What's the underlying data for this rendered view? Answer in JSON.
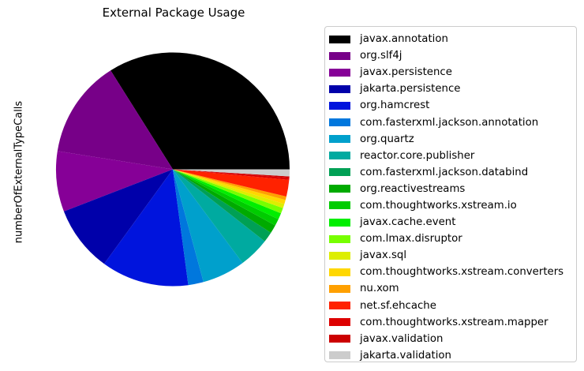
{
  "chart_data": {
    "type": "pie",
    "title": "External Package Usage",
    "ylabel": "numberOfExternalTypeCalls",
    "legend_position": "right",
    "slices": [
      {
        "label": "javax.annotation",
        "value": 35.3,
        "color": "#000000"
      },
      {
        "label": "org.slf4j",
        "value": 14.1,
        "color": "#770088"
      },
      {
        "label": "javax.persistence",
        "value": 8.7,
        "color": "#860097"
      },
      {
        "label": "jakarta.persistence",
        "value": 9.5,
        "color": "#0000aa"
      },
      {
        "label": "org.hamcrest",
        "value": 12.6,
        "color": "#0014dd"
      },
      {
        "label": "com.fasterxml.jackson.annotation",
        "value": 2.2,
        "color": "#0077dd"
      },
      {
        "label": "org.quartz",
        "value": 6.2,
        "color": "#00a0cc"
      },
      {
        "label": "reactor.core.publisher",
        "value": 4.4,
        "color": "#00aaa0"
      },
      {
        "label": "com.fasterxml.jackson.databind",
        "value": 1.5,
        "color": "#00a055"
      },
      {
        "label": "org.reactivestreams",
        "value": 1.2,
        "color": "#00aa00"
      },
      {
        "label": "com.thoughtworks.xstream.io",
        "value": 1.0,
        "color": "#00cc00"
      },
      {
        "label": "javax.cache.event",
        "value": 0.9,
        "color": "#00ee00"
      },
      {
        "label": "com.lmax.disruptor",
        "value": 0.8,
        "color": "#77ff00"
      },
      {
        "label": "javax.sql",
        "value": 0.6,
        "color": "#ddee00"
      },
      {
        "label": "com.thoughtworks.xstream.converters",
        "value": 0.6,
        "color": "#ffd700"
      },
      {
        "label": "nu.xom",
        "value": 0.5,
        "color": "#ffa000"
      },
      {
        "label": "net.sf.ehcache",
        "value": 2.4,
        "color": "#ff2200"
      },
      {
        "label": "com.thoughtworks.xstream.mapper",
        "value": 0.3,
        "color": "#dd0000"
      },
      {
        "label": "javax.validation",
        "value": 0.2,
        "color": "#cc0000"
      },
      {
        "label": "jakarta.validation",
        "value": 1.0,
        "color": "#cccccc"
      }
    ]
  }
}
